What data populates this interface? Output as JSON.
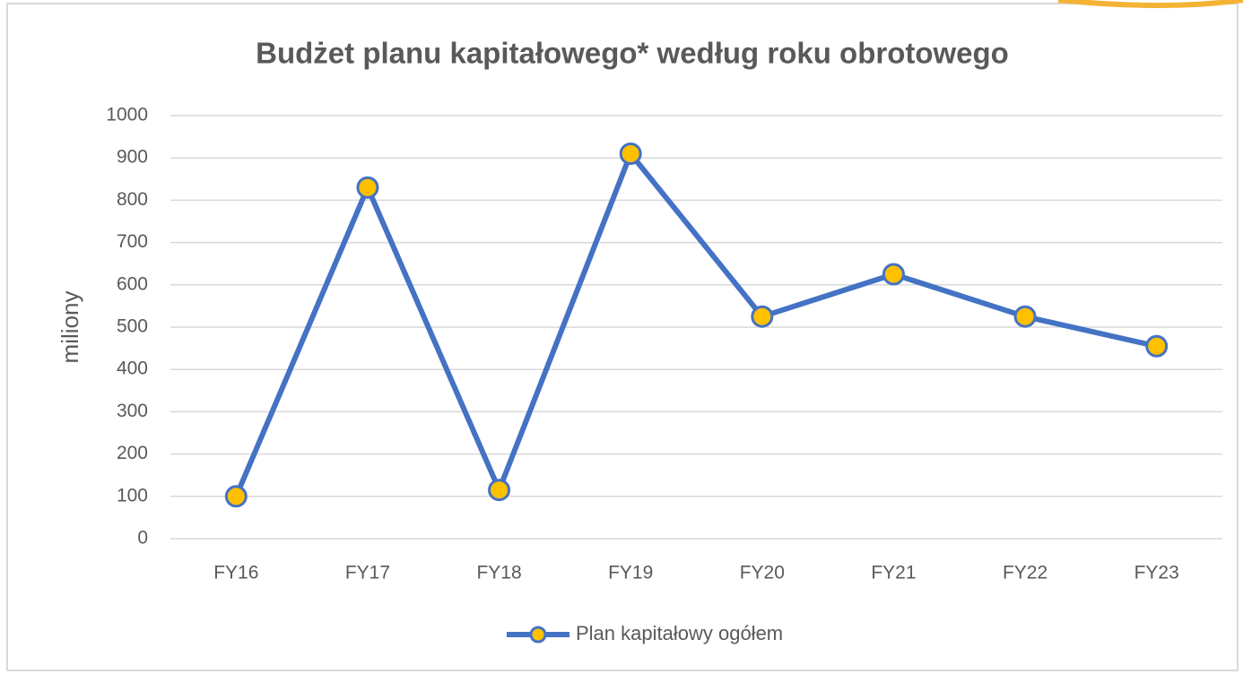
{
  "chart_data": {
    "type": "line",
    "title": "Budżet planu kapitałowego* według roku obrotowego",
    "y_label": "miliony",
    "categories": [
      "FY16",
      "FY17",
      "FY18",
      "FY19",
      "FY20",
      "FY21",
      "FY22",
      "FY23"
    ],
    "series": [
      {
        "name": "Plan kapitałowy ogółem",
        "color": "#4472c4",
        "marker_color": "#ffc000",
        "values": [
          100,
          830,
          115,
          910,
          525,
          625,
          525,
          455
        ]
      }
    ],
    "ylim": [
      0,
      1000
    ],
    "yticks": [
      0,
      100,
      200,
      300,
      400,
      500,
      600,
      700,
      800,
      900,
      1000
    ],
    "grid": true,
    "legend": "bottom"
  }
}
